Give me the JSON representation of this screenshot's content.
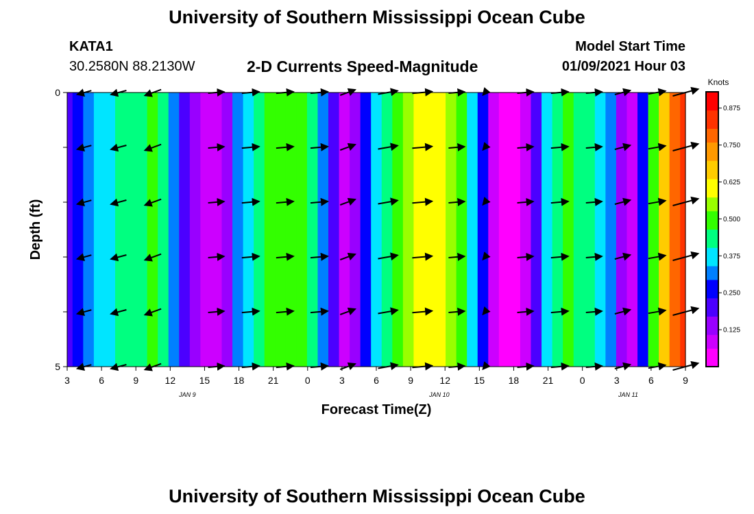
{
  "header": {
    "title": "University of Southern Mississippi Ocean Cube",
    "station": "KATA1",
    "coords": "30.2580N 88.2130W",
    "subtitle": "2-D Currents Speed-Magnitude",
    "model_start_label": "Model Start Time",
    "model_start_value": "01/09/2021 Hour 03"
  },
  "footer": {
    "title": "University of Southern Mississippi Ocean Cube"
  },
  "chart_data": {
    "type": "heatmap",
    "title": "2-D Currents Speed-Magnitude",
    "xlabel": "Forecast Time(Z)",
    "ylabel": "Depth (ft)",
    "ylim": [
      0,
      5
    ],
    "y_ticks": [
      {
        "value": 0,
        "label": "0"
      },
      {
        "value": 5,
        "label": "5"
      }
    ],
    "x_start_hour": 3,
    "x_end_hour": 57,
    "x_ticks": [
      {
        "hour": 3,
        "label": "3"
      },
      {
        "hour": 6,
        "label": "6"
      },
      {
        "hour": 9,
        "label": "9"
      },
      {
        "hour": 12,
        "label": "12"
      },
      {
        "hour": 15,
        "label": "15"
      },
      {
        "hour": 18,
        "label": "18"
      },
      {
        "hour": 21,
        "label": "21"
      },
      {
        "hour": 24,
        "label": "0"
      },
      {
        "hour": 27,
        "label": "3"
      },
      {
        "hour": 30,
        "label": "6"
      },
      {
        "hour": 33,
        "label": "9"
      },
      {
        "hour": 36,
        "label": "12"
      },
      {
        "hour": 39,
        "label": "15"
      },
      {
        "hour": 42,
        "label": "18"
      },
      {
        "hour": 45,
        "label": "21"
      },
      {
        "hour": 48,
        "label": "0"
      },
      {
        "hour": 51,
        "label": "3"
      },
      {
        "hour": 54,
        "label": "6"
      },
      {
        "hour": 57,
        "label": "9"
      }
    ],
    "date_labels": [
      {
        "hour": 13.5,
        "label": "JAN 9"
      },
      {
        "hour": 35.5,
        "label": "JAN 10"
      },
      {
        "hour": 52,
        "label": "JAN 11"
      }
    ],
    "colorbar": {
      "unit": "Knots",
      "min": 0,
      "max": 0.93,
      "tick_values": [
        0.125,
        0.25,
        0.375,
        0.5,
        0.625,
        0.75,
        0.875
      ],
      "tick_labels": [
        "0.125",
        "0.250",
        "0.375",
        "0.500",
        "0.625",
        "0.750",
        "0.875"
      ],
      "palette": [
        "#ff00ff",
        "#cc00ff",
        "#9900ff",
        "#4b00ff",
        "#0000ff",
        "#0080ff",
        "#00e5ff",
        "#00ff80",
        "#33ff00",
        "#99ff00",
        "#ffff00",
        "#ffcc00",
        "#ff9900",
        "#ff6600",
        "#ff3300",
        "#ff0000"
      ]
    },
    "speed_by_hour": [
      0.22,
      0.26,
      0.3,
      0.36,
      0.4,
      0.43,
      0.44,
      0.45,
      0.47,
      0.43,
      0.34,
      0.22,
      0.12,
      0.07,
      0.08,
      0.15,
      0.3,
      0.4,
      0.46,
      0.49,
      0.5,
      0.5,
      0.49,
      0.44,
      0.32,
      0.18,
      0.1,
      0.13,
      0.24,
      0.35,
      0.45,
      0.52,
      0.56,
      0.6,
      0.63,
      0.61,
      0.58,
      0.51,
      0.4,
      0.26,
      0.11,
      0.04,
      0.04,
      0.08,
      0.22,
      0.38,
      0.45,
      0.47,
      0.46,
      0.44,
      0.4,
      0.3,
      0.12,
      0.07,
      0.24,
      0.47,
      0.68,
      0.78,
      0.82
    ],
    "vector_times": [
      4.5,
      7.5,
      10.5,
      16,
      19,
      22,
      25,
      27.5,
      31,
      34,
      37,
      39.5,
      43,
      46,
      49,
      51.5,
      54.5,
      57
    ],
    "vector_depths": [
      0,
      1,
      2,
      3,
      4,
      5
    ],
    "vector_directions_deg": [
      195,
      195,
      200,
      5,
      5,
      5,
      5,
      20,
      10,
      5,
      5,
      230,
      5,
      5,
      5,
      15,
      10,
      15
    ],
    "vector_magnitudes": [
      0.35,
      0.4,
      0.45,
      0.4,
      0.45,
      0.45,
      0.45,
      0.4,
      0.55,
      0.55,
      0.4,
      0.04,
      0.4,
      0.45,
      0.4,
      0.4,
      0.45,
      0.8
    ]
  }
}
